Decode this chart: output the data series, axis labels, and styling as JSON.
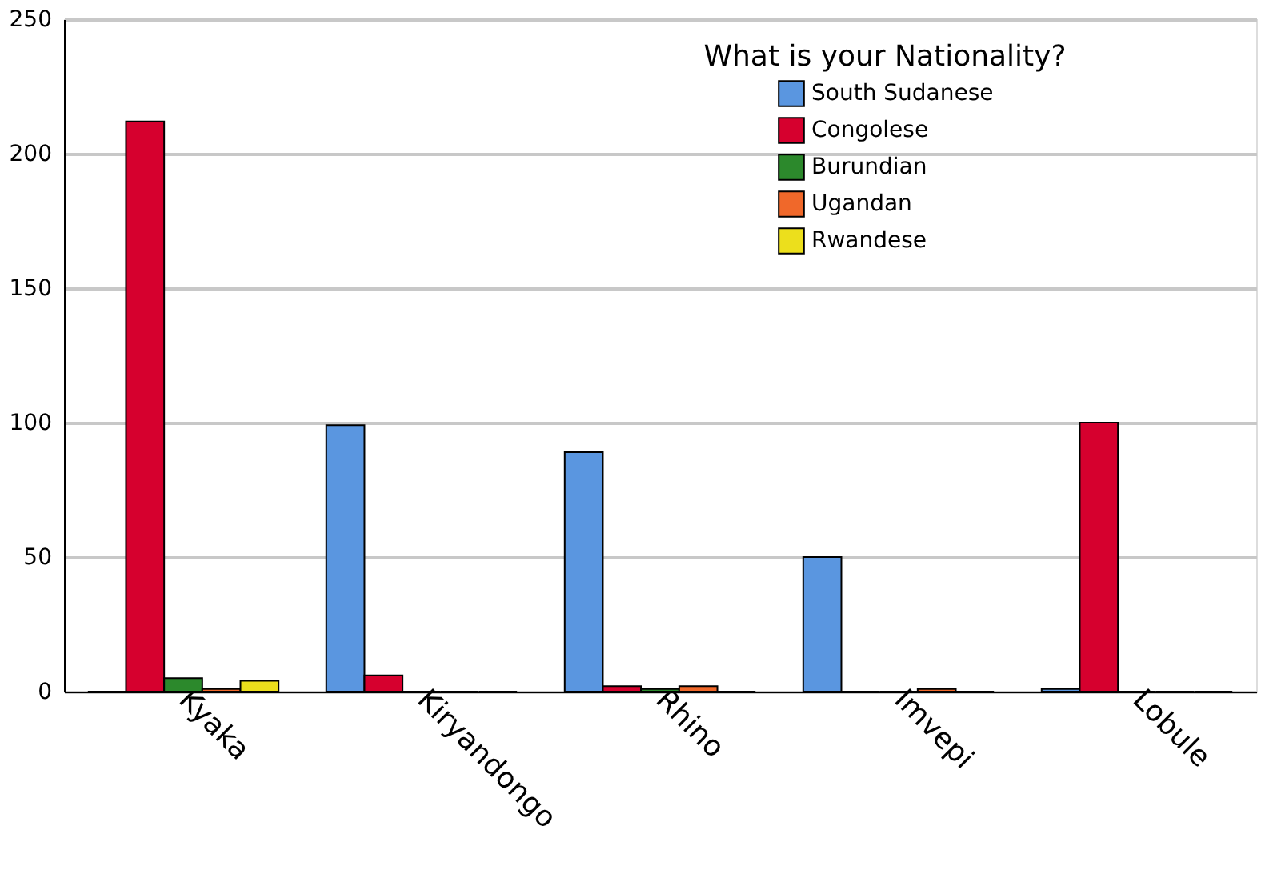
{
  "chart_data": {
    "type": "bar",
    "categories": [
      "Kyaka",
      "Kiryandongo",
      "Rhino",
      "Imvepi",
      "Lobule"
    ],
    "legend_title": "What is your Nationality?",
    "series": [
      {
        "name": "South Sudanese",
        "color": "#5a96e0",
        "values": [
          0,
          99,
          89,
          50,
          1
        ]
      },
      {
        "name": "Congolese",
        "color": "#d6002e",
        "values": [
          212,
          6,
          2,
          0,
          100
        ]
      },
      {
        "name": "Burundian",
        "color": "#2c892c",
        "values": [
          5,
          0,
          1,
          0,
          0
        ]
      },
      {
        "name": "Ugandan",
        "color": "#f0682a",
        "values": [
          1,
          0,
          2,
          1,
          0
        ]
      },
      {
        "name": "Rwandese",
        "color": "#ecdf1c",
        "values": [
          4,
          0,
          0,
          0,
          0
        ]
      }
    ],
    "ylim": [
      0,
      250
    ],
    "yticks": [
      0,
      50,
      100,
      150,
      200,
      250
    ],
    "grid": "y",
    "legend": "top"
  }
}
